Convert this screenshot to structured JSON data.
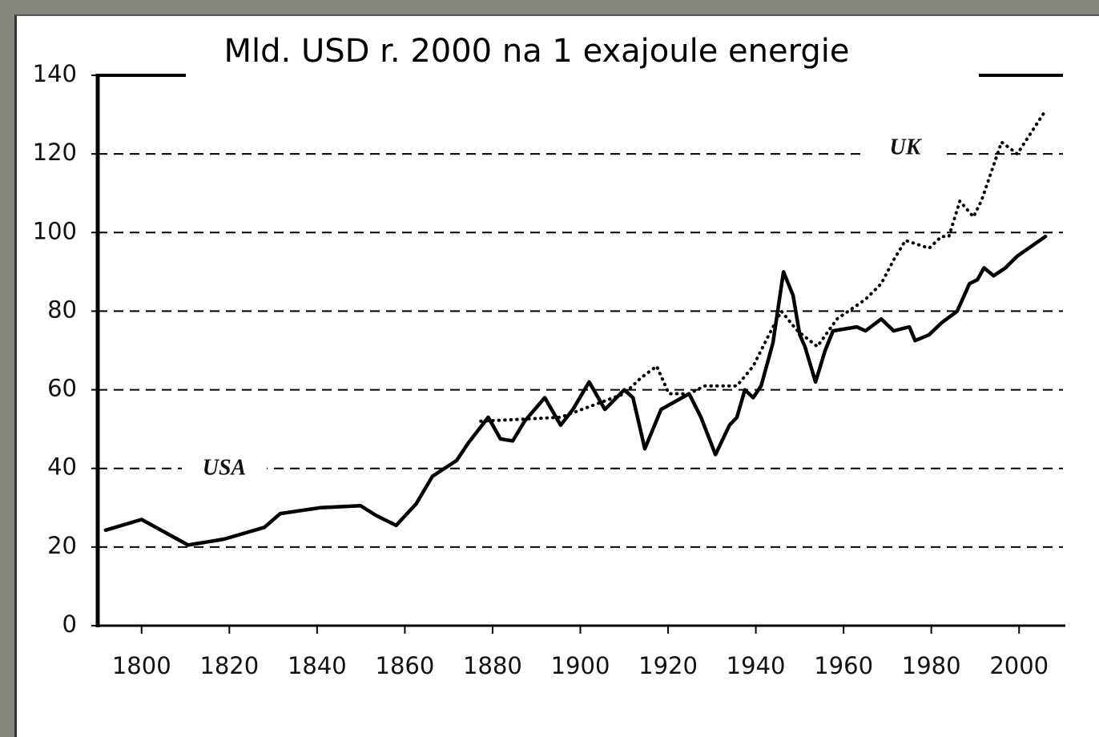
{
  "chart_data": {
    "type": "line",
    "title": "Mld. USD r. 2000 na 1 exajoule energie",
    "xlim": [
      1790,
      2010
    ],
    "ylim": [
      0,
      140
    ],
    "xticks": [
      1800,
      1820,
      1840,
      1860,
      1880,
      1900,
      1920,
      1940,
      1960,
      1980,
      2000
    ],
    "yticks": [
      0,
      20,
      40,
      60,
      80,
      100,
      120,
      140
    ],
    "grid": true,
    "series": [
      {
        "name": "USA",
        "color": "#000000",
        "style": "solid",
        "x": [
          1791.8,
          1800,
          1810.6,
          1818.8,
          1828,
          1831.6,
          1840.7,
          1849.9,
          1853.5,
          1858,
          1862.6,
          1866.3,
          1871.8,
          1874.5,
          1879,
          1881.8,
          1884.6,
          1887.3,
          1891.9,
          1895.5,
          1898.3,
          1902,
          1905.6,
          1910,
          1912,
          1914.7,
          1918.4,
          1924.8,
          1927.5,
          1930.8,
          1934,
          1935.7,
          1937.5,
          1939.4,
          1941.2,
          1943.9,
          1946.3,
          1948.5,
          1950,
          1951.2,
          1953.6,
          1955.8,
          1957.6,
          1963,
          1965,
          1968.6,
          1971.4,
          1975,
          1976.3,
          1979.5,
          1982.3,
          1985.9,
          1988.7,
          1990.5,
          1992,
          1994.2,
          1996.9,
          1999.6,
          2006
        ],
        "values": [
          24.3,
          27,
          20.5,
          22,
          25,
          28.5,
          30,
          30.5,
          28,
          25.5,
          31,
          38,
          42,
          46.5,
          53,
          47.5,
          47,
          52,
          58,
          51,
          55,
          62,
          55,
          60,
          58,
          45,
          55,
          59,
          53,
          43.5,
          51,
          53,
          60,
          58,
          61,
          72,
          90,
          84,
          74,
          71,
          62,
          70,
          75,
          76,
          75,
          78,
          75,
          76,
          72.5,
          74,
          77,
          80,
          87,
          88,
          91,
          89,
          91,
          94,
          99
        ]
      },
      {
        "name": "UK",
        "color": "#000000",
        "style": "dotted",
        "x": [
          1877.3,
          1895.5,
          1910,
          1913.8,
          1917.4,
          1920.2,
          1924.8,
          1928.4,
          1935.7,
          1939.4,
          1943,
          1945.8,
          1949.5,
          1954,
          1958.5,
          1965,
          1968.6,
          1971.4,
          1974.1,
          1979.5,
          1982.3,
          1984,
          1986.5,
          1989.6,
          1991.4,
          1996,
          1999.6,
          2006
        ],
        "values": [
          52,
          53,
          59,
          63,
          66,
          59,
          59,
          61,
          61,
          66,
          74,
          80,
          75,
          71,
          78,
          83,
          87,
          93,
          98,
          96,
          99,
          99,
          108,
          104,
          108,
          123,
          120,
          131
        ]
      }
    ]
  }
}
